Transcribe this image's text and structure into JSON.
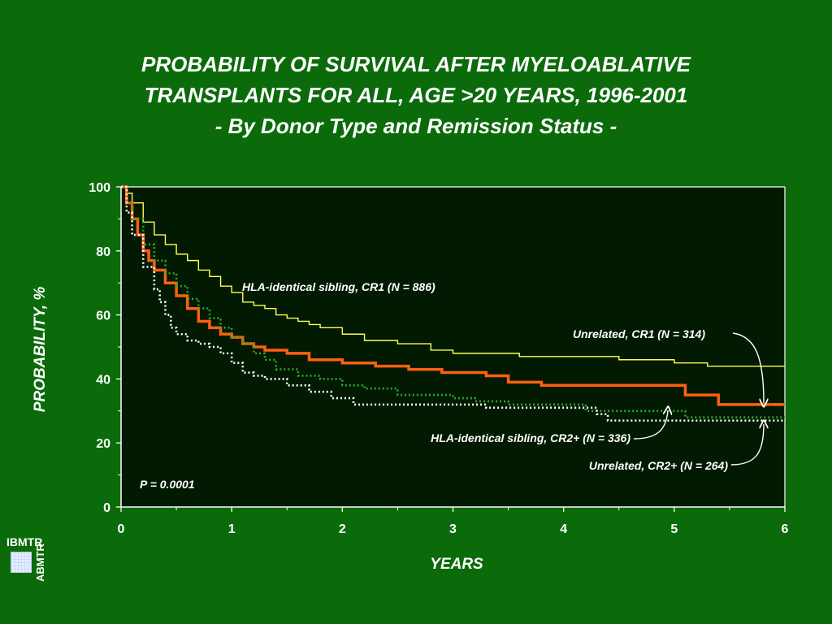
{
  "title": {
    "line1": "PROBABILITY OF SURVIVAL AFTER MYELOABLATIVE",
    "line2": "TRANSPLANTS FOR ALL, AGE >20 YEARS, 1996-2001",
    "line3": "- By Donor Type and Remission Status -"
  },
  "logo": {
    "top": "IBMTR",
    "side": "ABMTR"
  },
  "colors": {
    "background": "#0b6b0b",
    "plot_bg": "#011a01",
    "sib_cr1": "#ffff55",
    "unrel_cr1": "#ff6010",
    "sib_cr2": "#2ea82e",
    "unrel_cr2": "#ffffff"
  },
  "chart_data": {
    "type": "line",
    "title": "PROBABILITY OF SURVIVAL AFTER MYELOABLATIVE TRANSPLANTS FOR ALL, AGE >20 YEARS, 1996-2001 - By Donor Type and Remission Status -",
    "xlabel": "YEARS",
    "ylabel": "PROBABILITY, %",
    "xlim": [
      0,
      6
    ],
    "ylim": [
      0,
      100
    ],
    "xticks": [
      "0",
      "1",
      "2",
      "3",
      "4",
      "5",
      "6"
    ],
    "yticks": [
      "0",
      "20",
      "40",
      "60",
      "80",
      "100"
    ],
    "grid": false,
    "annotation": "P = 0.0001",
    "series": [
      {
        "name": "HLA-identical sibling, CR1 (N = 886)",
        "style": "solid-thin",
        "x": [
          0,
          0.05,
          0.1,
          0.2,
          0.3,
          0.4,
          0.5,
          0.6,
          0.7,
          0.8,
          0.9,
          1.0,
          1.1,
          1.2,
          1.3,
          1.4,
          1.5,
          1.6,
          1.7,
          1.8,
          2.0,
          2.2,
          2.5,
          2.8,
          3.0,
          3.3,
          3.6,
          4.0,
          4.5,
          5.0,
          5.1,
          5.3,
          5.4,
          6.0
        ],
        "y": [
          100,
          98,
          95,
          89,
          85,
          82,
          79,
          77,
          74,
          72,
          69,
          67,
          64,
          63,
          62,
          60,
          59,
          58,
          57,
          56,
          54,
          52,
          51,
          49,
          48,
          48,
          47,
          47,
          46,
          45,
          45,
          44,
          44,
          44
        ]
      },
      {
        "name": "Unrelated, CR1 (N = 314)",
        "style": "solid-thick",
        "x": [
          0,
          0.05,
          0.1,
          0.15,
          0.2,
          0.25,
          0.3,
          0.4,
          0.5,
          0.6,
          0.7,
          0.8,
          0.9,
          1.0,
          1.1,
          1.2,
          1.3,
          1.5,
          1.7,
          2.0,
          2.3,
          2.6,
          2.9,
          3.1,
          3.3,
          3.5,
          3.8,
          4.2,
          4.8,
          5.1,
          5.4,
          6.0
        ],
        "y": [
          100,
          95,
          90,
          85,
          80,
          77,
          74,
          70,
          66,
          62,
          58,
          56,
          54,
          53,
          51,
          50,
          49,
          48,
          46,
          45,
          44,
          43,
          42,
          42,
          41,
          39,
          38,
          38,
          38,
          35,
          32,
          32
        ]
      },
      {
        "name": "HLA-identical sibling, CR2+ (N = 336)",
        "style": "dotted",
        "x": [
          0,
          0.05,
          0.1,
          0.2,
          0.3,
          0.4,
          0.5,
          0.6,
          0.7,
          0.8,
          0.9,
          1.0,
          1.1,
          1.2,
          1.3,
          1.4,
          1.6,
          1.8,
          2.0,
          2.2,
          2.5,
          2.8,
          3.0,
          3.2,
          3.5,
          4.0,
          4.2,
          4.5,
          5.0,
          5.1,
          6.0
        ],
        "y": [
          100,
          95,
          90,
          82,
          77,
          73,
          69,
          65,
          62,
          59,
          56,
          53,
          51,
          48,
          46,
          43,
          41,
          40,
          38,
          37,
          35,
          35,
          34,
          33,
          32,
          32,
          30,
          30,
          30,
          28,
          28
        ]
      },
      {
        "name": "Unrelated, CR2+ (N = 264)",
        "style": "dotted",
        "x": [
          0,
          0.05,
          0.1,
          0.2,
          0.3,
          0.35,
          0.4,
          0.45,
          0.5,
          0.6,
          0.7,
          0.8,
          0.9,
          1.0,
          1.1,
          1.2,
          1.3,
          1.5,
          1.7,
          1.9,
          2.1,
          2.4,
          2.8,
          3.0,
          3.3,
          3.6,
          4.0,
          4.3,
          4.4,
          5.0,
          6.0
        ],
        "y": [
          100,
          92,
          85,
          75,
          68,
          64,
          60,
          56,
          54,
          52,
          51,
          50,
          48,
          45,
          42,
          41,
          40,
          38,
          36,
          34,
          32,
          32,
          32,
          32,
          31,
          31,
          31,
          29,
          27,
          27,
          27
        ]
      }
    ]
  }
}
